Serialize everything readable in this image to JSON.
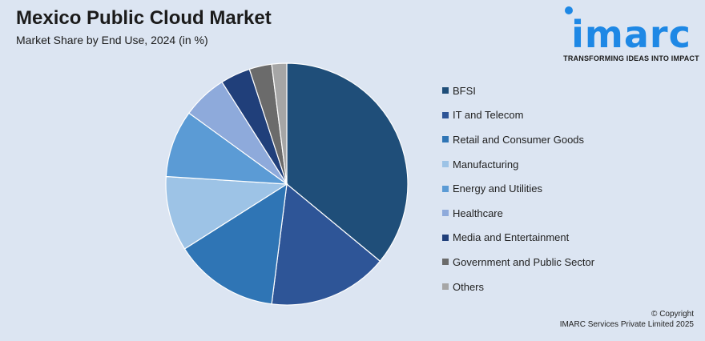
{
  "header": {
    "title": "Mexico Public Cloud Market",
    "subtitle": "Market Share by End Use, 2024 (in %)"
  },
  "logo": {
    "wordmark": "imarc",
    "tagline": "TRANSFORMING IDEAS INTO IMPACT",
    "color": "#1e88e5"
  },
  "chart_data": {
    "type": "pie",
    "title": "Mexico Public Cloud Market",
    "subtitle": "Market Share by End Use, 2024 (in %)",
    "start_angle_deg": 0,
    "direction": "clockwise",
    "legend_position": "right",
    "slices": [
      {
        "label": "BFSI",
        "value": 36,
        "color": "#1f4e79"
      },
      {
        "label": "IT and Telecom",
        "value": 16,
        "color": "#2e5597"
      },
      {
        "label": "Retail and Consumer Goods",
        "value": 14,
        "color": "#2f75b5"
      },
      {
        "label": "Manufacturing",
        "value": 10,
        "color": "#9dc3e6"
      },
      {
        "label": "Energy and Utilities",
        "value": 9,
        "color": "#5b9bd5"
      },
      {
        "label": "Healthcare",
        "value": 6,
        "color": "#8eaadb"
      },
      {
        "label": "Media and Entertainment",
        "value": 4,
        "color": "#203f7a"
      },
      {
        "label": "Government and Public Sector",
        "value": 3,
        "color": "#6b6b6b"
      },
      {
        "label": "Others",
        "value": 2,
        "color": "#a6a6a6"
      }
    ]
  },
  "footer": {
    "copyright_line1": "© Copyright",
    "copyright_line2": "IMARC Services Private Limited 2025"
  }
}
